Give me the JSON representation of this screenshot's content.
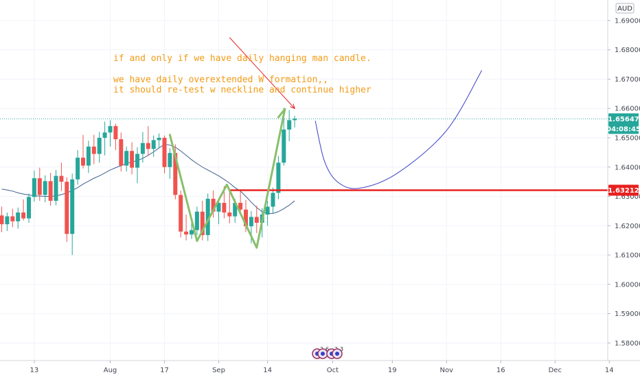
{
  "currency": "AUD",
  "colors": {
    "up": "#26a69a",
    "down": "#ef5350",
    "ma": "#3d5e8f",
    "pattern": "#88bf6b",
    "neckline": "#e8201f",
    "arrow": "#e8201f",
    "projection": "#3a3fc8",
    "annotation": "#f29b15",
    "grid": "#f0f3fa",
    "axis_text": "#434651"
  },
  "chart_data": {
    "type": "candlestick",
    "title": "",
    "ylim": [
      1.574,
      1.697
    ],
    "y_ticks": [
      1.58,
      1.59,
      1.6,
      1.61,
      1.62,
      1.63,
      1.64,
      1.65,
      1.66,
      1.67,
      1.68,
      1.69
    ],
    "y_tick_labels": [
      "1.58000",
      "1.59000",
      "1.60000",
      "1.61000",
      "1.62000",
      "1.63000",
      "1.64000",
      "1.65000",
      "1.66000",
      "1.67000",
      "1.68000",
      "1.69000"
    ],
    "x_ticks": [
      {
        "label": "13",
        "bar": 6
      },
      {
        "label": "Aug",
        "bar": 20
      },
      {
        "label": "17",
        "bar": 30
      },
      {
        "label": "Sep",
        "bar": 40
      },
      {
        "label": "14",
        "bar": 49
      },
      {
        "label": "Oct",
        "bar": 61
      },
      {
        "label": "19",
        "bar": 72
      },
      {
        "label": "Nov",
        "bar": 82
      },
      {
        "label": "16",
        "bar": 92
      },
      {
        "label": "Dec",
        "bar": 102
      },
      {
        "label": "14",
        "bar": 112
      }
    ],
    "candles": [
      [
        1.6235,
        1.6265,
        1.6178,
        1.6205
      ],
      [
        1.6205,
        1.6245,
        1.6182,
        1.6232
      ],
      [
        1.6232,
        1.6258,
        1.6195,
        1.6215
      ],
      [
        1.6215,
        1.6262,
        1.619,
        1.6245
      ],
      [
        1.6245,
        1.629,
        1.6218,
        1.6225
      ],
      [
        1.6225,
        1.631,
        1.621,
        1.6298
      ],
      [
        1.6298,
        1.6388,
        1.6282,
        1.6362
      ],
      [
        1.6362,
        1.6398,
        1.6285,
        1.6305
      ],
      [
        1.6305,
        1.6372,
        1.628,
        1.6352
      ],
      [
        1.6352,
        1.638,
        1.6268,
        1.6285
      ],
      [
        1.6285,
        1.639,
        1.627,
        1.637
      ],
      [
        1.637,
        1.6415,
        1.6318,
        1.635
      ],
      [
        1.635,
        1.6365,
        1.6145,
        1.6172
      ],
      [
        1.6172,
        1.6378,
        1.61,
        1.6358
      ],
      [
        1.6358,
        1.6458,
        1.634,
        1.6432
      ],
      [
        1.6432,
        1.651,
        1.6395,
        1.6405
      ],
      [
        1.6405,
        1.649,
        1.638,
        1.647
      ],
      [
        1.647,
        1.651,
        1.641,
        1.6445
      ],
      [
        1.6445,
        1.652,
        1.6415,
        1.65
      ],
      [
        1.65,
        1.6555,
        1.644,
        1.6518
      ],
      [
        1.6518,
        1.656,
        1.647,
        1.654
      ],
      [
        1.654,
        1.6548,
        1.6458,
        1.6495
      ],
      [
        1.6495,
        1.6518,
        1.6385,
        1.6405
      ],
      [
        1.6405,
        1.647,
        1.6385,
        1.6455
      ],
      [
        1.6455,
        1.6485,
        1.6375,
        1.6398
      ],
      [
        1.6398,
        1.6468,
        1.6345,
        1.6445
      ],
      [
        1.6445,
        1.652,
        1.6415,
        1.6482
      ],
      [
        1.6482,
        1.654,
        1.6438,
        1.6462
      ],
      [
        1.6462,
        1.6508,
        1.6435,
        1.6492
      ],
      [
        1.6492,
        1.6515,
        1.6465,
        1.65
      ],
      [
        1.65,
        1.6508,
        1.6378,
        1.64
      ],
      [
        1.64,
        1.6465,
        1.636,
        1.6448
      ],
      [
        1.6448,
        1.6478,
        1.629,
        1.6305
      ],
      [
        1.6305,
        1.632,
        1.616,
        1.618
      ],
      [
        1.618,
        1.6238,
        1.615,
        1.617
      ],
      [
        1.617,
        1.621,
        1.6155,
        1.6185
      ],
      [
        1.6185,
        1.6265,
        1.6168,
        1.6248
      ],
      [
        1.6248,
        1.6285,
        1.615,
        1.6168
      ],
      [
        1.6168,
        1.631,
        1.6148,
        1.6292
      ],
      [
        1.6292,
        1.632,
        1.6228,
        1.6248
      ],
      [
        1.6248,
        1.6292,
        1.6205,
        1.6278
      ],
      [
        1.6278,
        1.6335,
        1.6225,
        1.6245
      ],
      [
        1.6245,
        1.6318,
        1.6208,
        1.6232
      ],
      [
        1.6232,
        1.6292,
        1.621,
        1.6278
      ],
      [
        1.6278,
        1.6318,
        1.6242,
        1.6255
      ],
      [
        1.6255,
        1.6288,
        1.6178,
        1.6198
      ],
      [
        1.6198,
        1.625,
        1.614,
        1.623
      ],
      [
        1.623,
        1.6268,
        1.6175,
        1.621
      ],
      [
        1.621,
        1.626,
        1.616,
        1.6238
      ],
      [
        1.6238,
        1.6285,
        1.62,
        1.6265
      ],
      [
        1.6265,
        1.633,
        1.624,
        1.6312
      ],
      [
        1.6312,
        1.6438,
        1.629,
        1.6415
      ],
      [
        1.6415,
        1.6602,
        1.6405,
        1.6528
      ],
      [
        1.6528,
        1.6595,
        1.6488,
        1.656
      ],
      [
        1.656,
        1.6575,
        1.6535,
        1.6565
      ]
    ],
    "moving_average": [
      1.6325,
      1.6322,
      1.6318,
      1.6312,
      1.6308,
      1.6305,
      1.6302,
      1.6301,
      1.63,
      1.63,
      1.6302,
      1.6306,
      1.6312,
      1.632,
      1.633,
      1.6342,
      1.6352,
      1.6362,
      1.637,
      1.638,
      1.639,
      1.6398,
      1.6405,
      1.6412,
      1.6418,
      1.6422,
      1.643,
      1.644,
      1.6452,
      1.6465,
      1.6478,
      1.6475,
      1.6468,
      1.6455,
      1.644,
      1.6425,
      1.6412,
      1.64,
      1.639,
      1.638,
      1.637,
      1.6358,
      1.6345,
      1.633,
      1.6318,
      1.63,
      1.628,
      1.6262,
      1.6248,
      1.6242,
      1.6242,
      1.6248,
      1.6258,
      1.627,
      1.6285
    ],
    "w_pattern": [
      {
        "bar": 31,
        "y": 1.651
      },
      {
        "bar": 36,
        "y": 1.6148
      },
      {
        "bar": 41.5,
        "y": 1.634
      },
      {
        "bar": 47,
        "y": 1.6125
      },
      {
        "bar": 52.2,
        "y": 1.6598
      },
      {
        "bar": 51,
        "y": 1.657
      }
    ],
    "neckline": {
      "y": 1.63212,
      "from_bar": 42,
      "label": "1.63212"
    },
    "projection": [
      {
        "bar": 57.8,
        "y": 1.6558
      },
      {
        "bar": 59.5,
        "y": 1.642
      },
      {
        "bar": 62,
        "y": 1.6348
      },
      {
        "bar": 66,
        "y": 1.6328
      },
      {
        "bar": 73,
        "y": 1.638
      },
      {
        "bar": 82,
        "y": 1.6525
      },
      {
        "bar": 88.5,
        "y": 1.673
      }
    ],
    "arrow": {
      "from_bar": 42,
      "from_y": 1.6842,
      "to_bar": 54,
      "to_y": 1.66
    },
    "current_price": {
      "value": 1.65647,
      "label": "1.65647",
      "countdown": "04:08:45"
    },
    "annotations": [
      "if and only if we have daily hanging man candle.",
      "we have daily overextended W formation,,",
      "it should re-test w neckline and continue higher"
    ],
    "event_markers": [
      "2",
      "6",
      "2",
      "3"
    ]
  }
}
